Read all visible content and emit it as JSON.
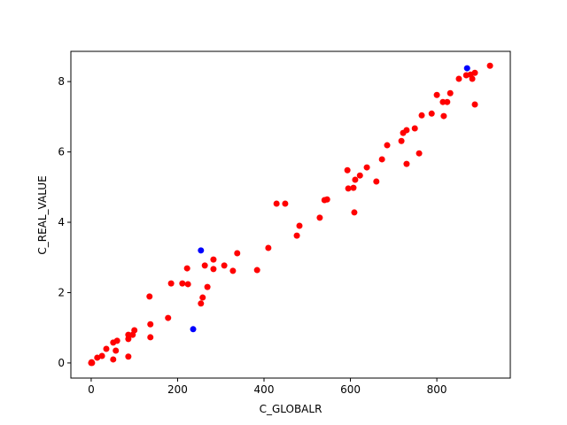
{
  "chart_data": {
    "type": "scatter",
    "x_label": "C_GLOBALR",
    "y_label": "C_REAL_VALUE",
    "xlim": [
      -47,
      970
    ],
    "ylim": [
      -0.43,
      8.86
    ],
    "xticks": [
      0,
      200,
      400,
      600,
      800
    ],
    "yticks": [
      0,
      2,
      4,
      6,
      8
    ],
    "grid": false,
    "series": [
      {
        "color": "#ff0000",
        "x": [
          0,
          2,
          1,
          14,
          25,
          35,
          51,
          51,
          57,
          60,
          86,
          86,
          86,
          96,
          100,
          137,
          137,
          135,
          178,
          185,
          211,
          224,
          222,
          254,
          258,
          263,
          269,
          283,
          283,
          308,
          328,
          338,
          384,
          410,
          429,
          449,
          476,
          482,
          529,
          540,
          546,
          593,
          595,
          607,
          609,
          611,
          622,
          638,
          660,
          673,
          685,
          718,
          722,
          730,
          730,
          749,
          759,
          765,
          788,
          800,
          814,
          816,
          824,
          831,
          851,
          868,
          878,
          882,
          888,
          888,
          923
        ],
        "y": [
          0,
          0,
          0.02,
          0.15,
          0.2,
          0.4,
          0.58,
          0.1,
          0.35,
          0.63,
          0.8,
          0.18,
          0.68,
          0.8,
          0.93,
          0.73,
          1.1,
          1.89,
          1.28,
          2.26,
          2.26,
          2.24,
          2.69,
          1.69,
          1.86,
          2.77,
          2.16,
          2.94,
          2.67,
          2.77,
          2.62,
          3.12,
          2.64,
          3.27,
          4.53,
          4.53,
          3.62,
          3.9,
          4.13,
          4.63,
          4.65,
          5.48,
          4.96,
          4.98,
          4.28,
          5.21,
          5.33,
          5.56,
          5.16,
          5.79,
          6.19,
          6.31,
          6.54,
          6.62,
          5.66,
          6.67,
          5.96,
          7.04,
          7.09,
          7.62,
          7.42,
          7.02,
          7.42,
          7.67,
          8.08,
          8.18,
          8.2,
          8.08,
          7.35,
          8.25,
          8.45
        ]
      },
      {
        "color": "#0000ff",
        "x": [
          870,
          254,
          236
        ],
        "y": [
          8.38,
          3.2,
          0.96
        ]
      }
    ]
  }
}
